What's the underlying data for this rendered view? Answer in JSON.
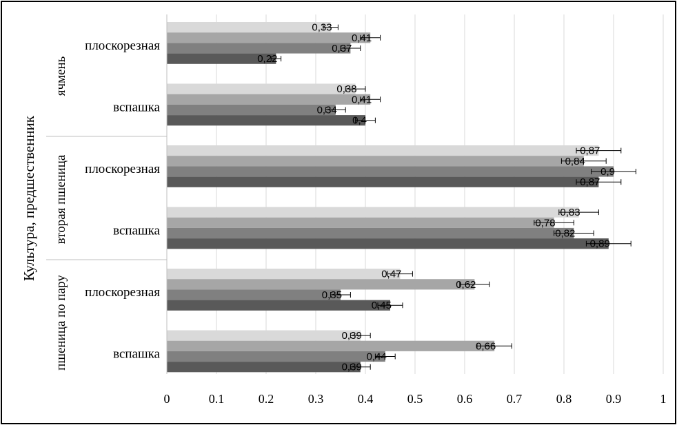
{
  "chart_data": {
    "type": "bar",
    "orientation": "horizontal",
    "ylabel": "Культура, предшественник",
    "xlim": [
      0,
      1
    ],
    "xticks": [
      "0",
      "0.1",
      "0.2",
      "0.3",
      "0.4",
      "0.5",
      "0.6",
      "0.7",
      "0.8",
      "0.9",
      "1"
    ],
    "grid": true,
    "legend": "none",
    "groups": [
      {
        "label": "ячмень",
        "categories": [
          {
            "label": "плоскорезная",
            "values": [
              0.33,
              0.41,
              0.37,
              0.22
            ],
            "labels": [
              "0,33",
              "0,41",
              "0,37",
              "0,22"
            ],
            "errors": [
              0.015,
              0.02,
              0.02,
              0.01
            ]
          },
          {
            "label": "вспашка",
            "values": [
              0.38,
              0.41,
              0.34,
              0.4
            ],
            "labels": [
              "0,38",
              "0,41",
              "0,34",
              "0,4"
            ],
            "errors": [
              0.02,
              0.02,
              0.02,
              0.02
            ]
          }
        ]
      },
      {
        "label": "вторая пшеница",
        "categories": [
          {
            "label": "плоскорезная",
            "values": [
              0.87,
              0.84,
              0.9,
              0.87
            ],
            "labels": [
              "0,87",
              "0,84",
              "0,9",
              "0,87"
            ],
            "errors": [
              0.045,
              0.045,
              0.045,
              0.045
            ]
          },
          {
            "label": "вспашка",
            "values": [
              0.83,
              0.78,
              0.82,
              0.89
            ],
            "labels": [
              "0,83",
              "0,78",
              "0,82",
              "0,89"
            ],
            "errors": [
              0.04,
              0.04,
              0.04,
              0.045
            ]
          }
        ]
      },
      {
        "label": "пшеница по пару",
        "categories": [
          {
            "label": "плоскорезная",
            "values": [
              0.47,
              0.62,
              0.35,
              0.45
            ],
            "labels": [
              "0,47",
              "0,62",
              "0,35",
              "0,45"
            ],
            "errors": [
              0.025,
              0.03,
              0.02,
              0.025
            ]
          },
          {
            "label": "вспашка",
            "values": [
              0.39,
              0.66,
              0.44,
              0.39
            ],
            "labels": [
              "0,39",
              "0,66",
              "0,44",
              "0,39"
            ],
            "errors": [
              0.02,
              0.035,
              0.02,
              0.02
            ]
          }
        ]
      }
    ],
    "series_colors": [
      "#d9d9d9",
      "#a6a6a6",
      "#808080",
      "#595959"
    ],
    "error_bar_color": "#000000",
    "grid_color": "#d9d9d9"
  }
}
